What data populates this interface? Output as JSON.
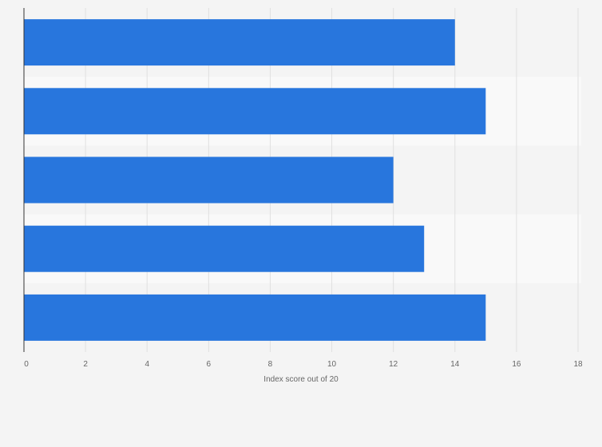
{
  "chart_data": {
    "type": "bar",
    "orientation": "horizontal",
    "categories": [
      "",
      "",
      "",
      "",
      ""
    ],
    "values": [
      14,
      15,
      12,
      13,
      15
    ],
    "xlabel": "Index score out of 20",
    "ylabel": "",
    "xlim": [
      0,
      18
    ],
    "x_ticks": [
      0,
      2,
      4,
      6,
      8,
      10,
      12,
      14,
      16,
      18
    ],
    "grid": true,
    "bar_color": "#2876dd",
    "band_colors": [
      "#f4f4f4",
      "#f9f9f9"
    ],
    "grid_color": "#e0e0e0",
    "axis_color": "#333333"
  }
}
